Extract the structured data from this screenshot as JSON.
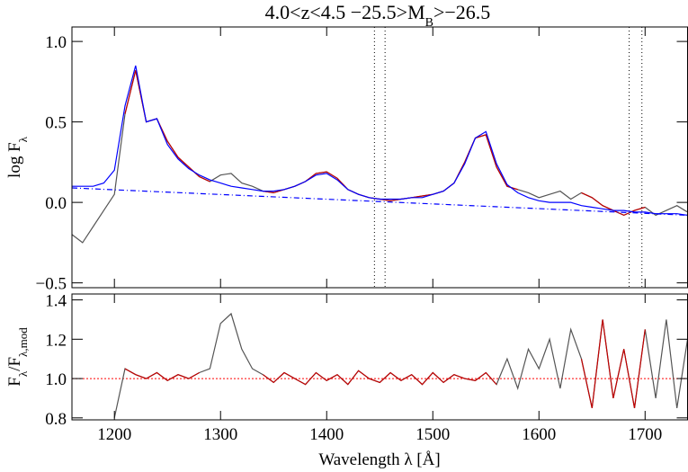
{
  "chart_data": [
    {
      "type": "line",
      "title": [
        "4.0<z<4.5 −25.5>M",
        "B",
        ">−26.5"
      ],
      "ylabel": [
        "log F",
        "λ"
      ],
      "xlim": [
        1160,
        1740
      ],
      "ylim": [
        -0.53,
        1.09
      ],
      "yticks": [
        {
          "value": -0.5,
          "label": "−0.5"
        },
        {
          "value": 0,
          "label": "0.0"
        },
        {
          "value": 0.5,
          "label": "0.5"
        },
        {
          "value": 1,
          "label": "1.0"
        }
      ],
      "vlines": [
        1445,
        1455,
        1685,
        1697
      ],
      "x": [
        1160,
        1170,
        1180,
        1190,
        1200,
        1210,
        1220,
        1230,
        1240,
        1250,
        1260,
        1270,
        1280,
        1290,
        1300,
        1310,
        1320,
        1330,
        1340,
        1350,
        1360,
        1370,
        1380,
        1390,
        1400,
        1410,
        1420,
        1430,
        1440,
        1450,
        1460,
        1470,
        1480,
        1490,
        1500,
        1510,
        1520,
        1530,
        1540,
        1550,
        1560,
        1570,
        1580,
        1590,
        1600,
        1610,
        1620,
        1630,
        1640,
        1650,
        1660,
        1670,
        1680,
        1690,
        1700,
        1710,
        1720,
        1730,
        1740
      ],
      "series": [
        {
          "color": "#555555",
          "values": [
            -0.2,
            -0.25,
            -0.15,
            -0.05,
            0.05,
            0.55,
            0.82,
            0.5,
            0.52,
            0.38,
            0.28,
            0.22,
            0.16,
            0.13,
            0.17,
            0.18,
            0.12,
            0.1,
            0.07,
            0.06,
            0.08,
            0.1,
            0.13,
            0.18,
            0.19,
            0.15,
            0.08,
            0.05,
            0.03,
            0.02,
            0.01,
            0.02,
            0.03,
            0.04,
            0.05,
            0.07,
            0.12,
            0.25,
            0.4,
            0.42,
            0.22,
            0.1,
            0.08,
            0.06,
            0.03,
            0.05,
            0.07,
            0.02,
            0.06,
            0.03,
            -0.02,
            -0.05,
            -0.08,
            -0.05,
            -0.03,
            -0.08,
            -0.05,
            -0.02,
            -0.06
          ]
        },
        {
          "color": "#c00000",
          "values": [
            null,
            null,
            null,
            null,
            null,
            0.55,
            0.82,
            0.5,
            0.52,
            0.38,
            0.28,
            0.22,
            0.16,
            0.13,
            null,
            null,
            null,
            null,
            0.07,
            0.06,
            0.08,
            0.1,
            0.13,
            0.18,
            0.19,
            0.15,
            0.08,
            0.05,
            0.03,
            0.02,
            0.01,
            0.02,
            0.03,
            0.04,
            0.05,
            0.07,
            0.12,
            0.25,
            0.4,
            0.42,
            0.22,
            0.1,
            0.08,
            null,
            null,
            null,
            null,
            null,
            0.06,
            0.03,
            -0.02,
            -0.05,
            -0.08,
            -0.05,
            -0.03,
            null,
            null,
            null,
            null
          ]
        },
        {
          "color": "#0000ff",
          "values": [
            0.1,
            0.1,
            0.1,
            0.12,
            0.2,
            0.6,
            0.85,
            0.5,
            0.52,
            0.36,
            0.27,
            0.21,
            0.17,
            0.14,
            0.12,
            0.1,
            0.09,
            0.08,
            0.07,
            0.07,
            0.08,
            0.1,
            0.13,
            0.17,
            0.18,
            0.14,
            0.08,
            0.05,
            0.03,
            0.02,
            0.02,
            0.02,
            0.03,
            0.03,
            0.05,
            0.07,
            0.12,
            0.24,
            0.4,
            0.44,
            0.24,
            0.11,
            0.06,
            0.03,
            0.01,
            0,
            0,
            0,
            -0.02,
            -0.03,
            -0.04,
            -0.05,
            -0.05,
            -0.06,
            -0.06,
            -0.07,
            -0.07,
            -0.07,
            -0.08
          ]
        },
        {
          "color": "#0000ff",
          "style": "dashdot",
          "x": [
            1160,
            1740
          ],
          "values": [
            0.09,
            -0.08
          ]
        }
      ]
    },
    {
      "type": "line",
      "ylabel": [
        "F",
        "λ",
        "/F",
        "λ,mod"
      ],
      "xlabel": "Wavelength λ [Å]",
      "xlim": [
        1160,
        1740
      ],
      "ylim": [
        0.79,
        1.43
      ],
      "xticks": [
        1200,
        1300,
        1400,
        1500,
        1600,
        1700
      ],
      "yticks": [
        {
          "value": 0.8,
          "label": "0.8"
        },
        {
          "value": 1,
          "label": "1.0"
        },
        {
          "value": 1.2,
          "label": "1.2"
        },
        {
          "value": 1.4,
          "label": "1.4"
        }
      ],
      "reference": 1,
      "reference_color": "#ff0000",
      "x": [
        1160,
        1170,
        1180,
        1190,
        1200,
        1210,
        1220,
        1230,
        1240,
        1250,
        1260,
        1270,
        1280,
        1290,
        1300,
        1310,
        1320,
        1330,
        1340,
        1350,
        1360,
        1370,
        1380,
        1390,
        1400,
        1410,
        1420,
        1430,
        1440,
        1450,
        1460,
        1470,
        1480,
        1490,
        1500,
        1510,
        1520,
        1530,
        1540,
        1550,
        1560,
        1570,
        1580,
        1590,
        1600,
        1610,
        1620,
        1630,
        1640,
        1650,
        1660,
        1670,
        1680,
        1690,
        1700,
        1710,
        1720,
        1730,
        1740
      ],
      "series": [
        {
          "color": "#555555",
          "values": [
            null,
            null,
            null,
            null,
            0.8,
            1.05,
            1.02,
            1,
            1.03,
            0.99,
            1.02,
            1,
            1.03,
            1.05,
            1.28,
            1.33,
            1.15,
            1.05,
            1.02,
            0.98,
            1.03,
            1,
            0.97,
            1.03,
            0.99,
            1.02,
            0.97,
            1.04,
            1,
            0.98,
            1.03,
            0.99,
            1.02,
            0.97,
            1.03,
            0.98,
            1.02,
            1,
            0.99,
            1.03,
            0.97,
            1.1,
            0.95,
            1.15,
            1.05,
            1.2,
            0.95,
            1.25,
            1.1,
            0.85,
            1.3,
            0.9,
            1.15,
            0.85,
            1.25,
            0.9,
            1.3,
            0.85,
            1.2
          ]
        },
        {
          "color": "#c00000",
          "values": [
            null,
            null,
            null,
            null,
            null,
            1.05,
            1.02,
            1,
            1.03,
            0.99,
            1.02,
            1,
            1.03,
            null,
            null,
            null,
            null,
            null,
            1.02,
            0.98,
            1.03,
            1,
            0.97,
            1.03,
            0.99,
            1.02,
            0.97,
            1.04,
            1,
            0.98,
            1.03,
            0.99,
            1.02,
            0.97,
            1.03,
            0.98,
            1.02,
            1,
            0.99,
            1.03,
            0.97,
            null,
            null,
            null,
            null,
            null,
            null,
            null,
            1.1,
            0.85,
            1.3,
            0.9,
            1.15,
            0.85,
            1.25,
            null,
            null,
            null,
            null
          ]
        }
      ]
    }
  ]
}
